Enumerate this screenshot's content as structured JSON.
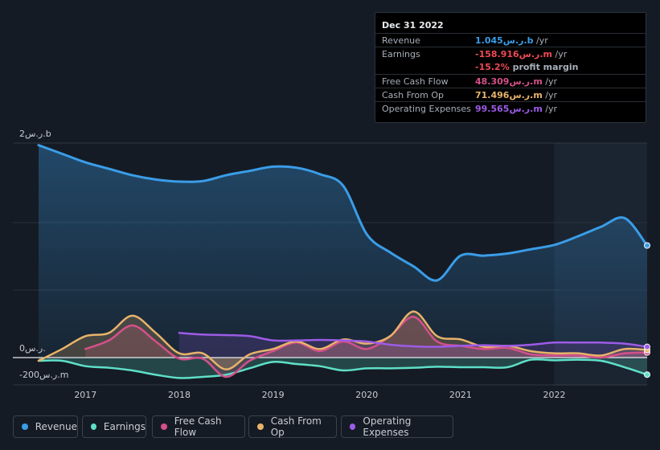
{
  "tooltip": {
    "date": "Dec 31 2022",
    "rows": [
      {
        "label": "Revenue",
        "value": "1.045ر.س.b",
        "unit": " /yr",
        "color": "#3a9de8"
      },
      {
        "label": "Earnings",
        "value": "-158.916ر.س.m",
        "unit": " /yr",
        "color": "#ef4a55"
      },
      {
        "label": "",
        "value": "-15.2%",
        "unit": " profit margin",
        "color": "#ef4a55"
      },
      {
        "label": "Free Cash Flow",
        "value": "48.309ر.س.m",
        "unit": " /yr",
        "color": "#d4508a"
      },
      {
        "label": "Cash From Op",
        "value": "71.496ر.س.m",
        "unit": " /yr",
        "color": "#e8b36a"
      },
      {
        "label": "Operating Expenses",
        "value": "99.565ر.س.m",
        "unit": " /yr",
        "color": "#9d5be6"
      }
    ]
  },
  "legend": [
    {
      "label": "Revenue",
      "color": "#3a9de8"
    },
    {
      "label": "Earnings",
      "color": "#5ee0c8"
    },
    {
      "label": "Free Cash Flow",
      "color": "#d4508a"
    },
    {
      "label": "Cash From Op",
      "color": "#e8b36a"
    },
    {
      "label": "Operating Expenses",
      "color": "#9d5be6"
    }
  ],
  "chart_data": {
    "type": "line",
    "title": "",
    "xlabel": "",
    "ylabel": "",
    "y_tick_labels": [
      "2ر.س.b",
      "0ر.س.",
      "-200ر.س.m"
    ],
    "x_tick_labels": [
      "2017",
      "2018",
      "2019",
      "2020",
      "2021",
      "2022"
    ],
    "x_ticks": [
      2017,
      2018,
      2019,
      2020,
      2021,
      2022
    ],
    "xlim": [
      2016.5,
      2022.99
    ],
    "ylim": [
      -200,
      2000
    ],
    "units": "ر.س.m",
    "forecast_start": 2022.0,
    "series": [
      {
        "name": "Revenue",
        "color": "#3a9de8",
        "fill": true,
        "x": [
          2016.5,
          2016.75,
          2017.0,
          2017.25,
          2017.5,
          2017.75,
          2018.0,
          2018.25,
          2018.5,
          2018.75,
          2019.0,
          2019.25,
          2019.5,
          2019.75,
          2020.0,
          2020.25,
          2020.5,
          2020.75,
          2021.0,
          2021.25,
          2021.5,
          2021.75,
          2022.0,
          2022.25,
          2022.5,
          2022.75,
          2022.99
        ],
        "y": [
          1980,
          1900,
          1820,
          1760,
          1700,
          1660,
          1640,
          1645,
          1700,
          1740,
          1780,
          1770,
          1710,
          1600,
          1150,
          980,
          850,
          720,
          950,
          950,
          970,
          1010,
          1050,
          1130,
          1220,
          1300,
          1045
        ]
      },
      {
        "name": "Earnings",
        "color": "#5ee0c8",
        "fill": true,
        "x": [
          2016.5,
          2016.75,
          2017.0,
          2017.25,
          2017.5,
          2017.75,
          2018.0,
          2018.25,
          2018.5,
          2018.75,
          2019.0,
          2019.25,
          2019.5,
          2019.75,
          2020.0,
          2020.25,
          2020.5,
          2020.75,
          2021.0,
          2021.25,
          2021.5,
          2021.75,
          2022.0,
          2022.25,
          2022.5,
          2022.75,
          2022.99
        ],
        "y": [
          -30,
          -30,
          -80,
          -95,
          -120,
          -160,
          -190,
          -180,
          -160,
          -100,
          -40,
          -60,
          -80,
          -120,
          -100,
          -100,
          -95,
          -85,
          -90,
          -90,
          -90,
          -20,
          -25,
          -20,
          -30,
          -90,
          -159
        ]
      },
      {
        "name": "Free Cash Flow",
        "color": "#d4508a",
        "fill": true,
        "x": [
          2017.0,
          2017.25,
          2017.5,
          2017.75,
          2018.0,
          2018.25,
          2018.5,
          2018.75,
          2019.0,
          2019.25,
          2019.5,
          2019.75,
          2020.0,
          2020.25,
          2020.5,
          2020.75,
          2021.0,
          2021.25,
          2021.5,
          2021.75,
          2022.0,
          2022.25,
          2022.5,
          2022.75,
          2022.99
        ],
        "y": [
          80,
          160,
          300,
          150,
          -10,
          -10,
          -180,
          -30,
          60,
          140,
          60,
          150,
          80,
          200,
          380,
          150,
          110,
          80,
          90,
          30,
          20,
          20,
          0,
          40,
          48
        ]
      },
      {
        "name": "Cash From Op",
        "color": "#e8b36a",
        "fill": true,
        "x": [
          2016.5,
          2016.75,
          2017.0,
          2017.25,
          2017.5,
          2017.75,
          2018.0,
          2018.25,
          2018.5,
          2018.75,
          2019.0,
          2019.25,
          2019.5,
          2019.75,
          2020.0,
          2020.25,
          2020.5,
          2020.75,
          2021.0,
          2021.25,
          2021.5,
          2021.75,
          2022.0,
          2022.25,
          2022.5,
          2022.75,
          2022.99
        ],
        "y": [
          -30,
          80,
          200,
          230,
          390,
          230,
          40,
          40,
          -110,
          30,
          80,
          150,
          80,
          170,
          130,
          200,
          430,
          200,
          170,
          100,
          110,
          60,
          40,
          40,
          20,
          80,
          71
        ]
      },
      {
        "name": "Operating Expenses",
        "color": "#9d5be6",
        "fill": true,
        "x": [
          2018.0,
          2018.25,
          2018.5,
          2018.75,
          2019.0,
          2019.25,
          2019.5,
          2019.75,
          2020.0,
          2020.25,
          2020.5,
          2020.75,
          2021.0,
          2021.25,
          2021.5,
          2021.75,
          2022.0,
          2022.25,
          2022.5,
          2022.75,
          2022.99
        ],
        "y": [
          230,
          215,
          210,
          200,
          160,
          160,
          165,
          160,
          150,
          120,
          105,
          100,
          110,
          115,
          110,
          120,
          140,
          140,
          140,
          130,
          100
        ]
      }
    ]
  }
}
